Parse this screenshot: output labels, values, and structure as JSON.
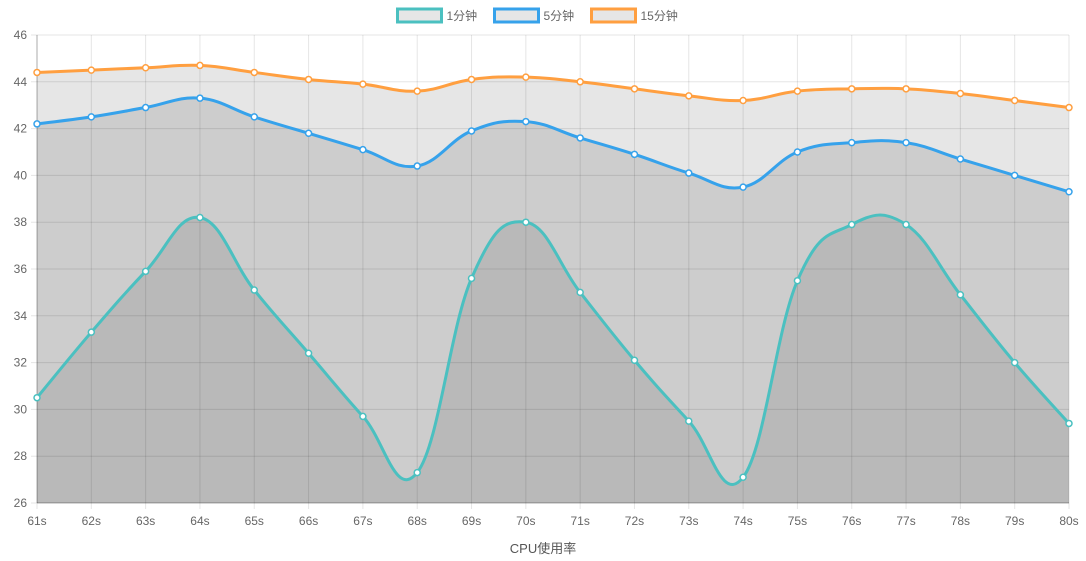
{
  "chart_data": {
    "type": "line",
    "stacked_fill": true,
    "categories": [
      "61s",
      "62s",
      "63s",
      "64s",
      "65s",
      "66s",
      "67s",
      "68s",
      "69s",
      "70s",
      "71s",
      "72s",
      "73s",
      "74s",
      "75s",
      "76s",
      "77s",
      "78s",
      "79s",
      "80s"
    ],
    "series": [
      {
        "name": "1分钟",
        "color": "#4bc0c0",
        "fill": "#b9b9b9",
        "values": [
          30.5,
          33.3,
          35.9,
          38.2,
          35.1,
          32.4,
          29.7,
          27.3,
          35.6,
          38.0,
          35.0,
          32.1,
          29.5,
          27.1,
          35.5,
          37.9,
          37.9,
          34.9,
          32.0,
          29.4
        ]
      },
      {
        "name": "5分钟",
        "color": "#36a2eb",
        "fill": "#cdcdcd",
        "values": [
          42.2,
          42.5,
          42.9,
          43.3,
          42.5,
          41.8,
          41.1,
          40.4,
          41.9,
          42.3,
          41.6,
          40.9,
          40.1,
          39.5,
          41.0,
          41.4,
          41.4,
          40.7,
          40.0,
          39.3
        ]
      },
      {
        "name": "15分钟",
        "color": "#ff9f40",
        "fill": "#e6e6e6",
        "values": [
          44.4,
          44.5,
          44.6,
          44.7,
          44.4,
          44.1,
          43.9,
          43.6,
          44.1,
          44.2,
          44.0,
          43.7,
          43.4,
          43.2,
          43.6,
          43.7,
          43.7,
          43.5,
          43.2,
          42.9
        ]
      }
    ],
    "xlabel": "CPU使用率",
    "ylabel": "",
    "ylim": [
      26,
      46
    ],
    "yticks": [
      26,
      28,
      30,
      32,
      34,
      36,
      38,
      40,
      42,
      44,
      46
    ],
    "grid": true,
    "legend_position": "top-center"
  }
}
